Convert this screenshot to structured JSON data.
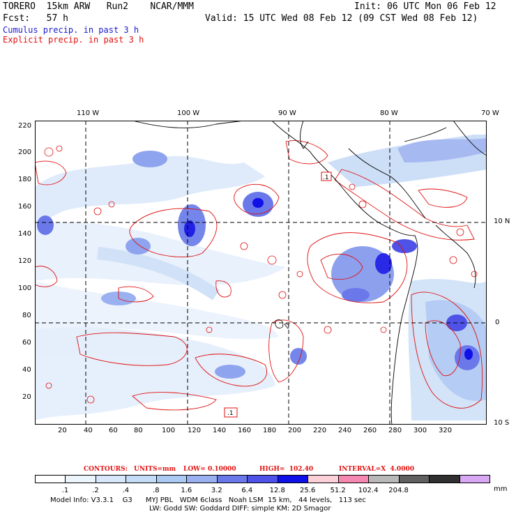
{
  "header": {
    "run_title": "TORERO  15km ARW   Run2    NCAR/MMM",
    "init": "Init: 06 UTC Mon 06 Feb 12",
    "fcst": "Fcst:   57 h",
    "valid": "Valid: 15 UTC Wed 08 Feb 12 (09 CST Wed 08 Feb 12)",
    "legend_cumulus": "Cumulus precip. in past 3 h",
    "legend_explicit": "Explicit precip. in past 3 h"
  },
  "map": {
    "lon_labels": [
      "110 W",
      "100 W",
      "90 W",
      "80 W",
      "70 W"
    ],
    "lat_labels": [
      "10 N",
      "0",
      "10 S"
    ],
    "y_ticks": [
      "220",
      "200",
      "180",
      "160",
      "140",
      "120",
      "100",
      "80",
      "60",
      "40",
      "20"
    ],
    "x_ticks": [
      "20",
      "40",
      "60",
      "80",
      "100",
      "120",
      "140",
      "160",
      "180",
      "200",
      "220",
      "240",
      "260",
      "280",
      "300",
      "320"
    ],
    "contour_labels": [
      ".1",
      ".1"
    ]
  },
  "contours_info": {
    "contours": "CONTOURS:",
    "units": "UNITS=mm",
    "low": "LOW= 0.10000",
    "high": "HIGH=  102.40",
    "interval": "INTERVAL=X  4.0000"
  },
  "colorbar": {
    "labels": [
      ".1",
      ".2",
      ".4",
      ".8",
      "1.6",
      "3.2",
      "6.4",
      "12.8",
      "25.6",
      "51.2",
      "102.4",
      "204.8"
    ],
    "unit": "mm",
    "colors": [
      "#ffffff",
      "#ecf4fc",
      "#d8e8fa",
      "#c4dcf6",
      "#aacaf4",
      "#9ab0f0",
      "#6a78ea",
      "#4e52e6",
      "#1010e8",
      "#fcd0d8",
      "#f488b0",
      "#b8b8b8",
      "#606060",
      "#303030",
      "#d8a8f4"
    ]
  },
  "footer": {
    "line1": "Model Info: V3.3.1    G3      MYJ PBL   WDM 6class   Noah LSM  15 km,   44 levels,   113 sec",
    "line2": "LW: Godd SW: Goddard DIFF: simple KM: 2D Smagor"
  }
}
